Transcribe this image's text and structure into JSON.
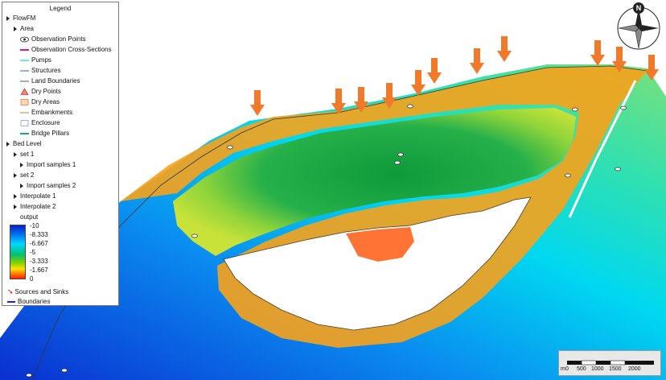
{
  "legend": {
    "title": "Legend",
    "items": [
      {
        "label": "FlowFM",
        "kind": "tri",
        "indent": 0
      },
      {
        "label": "Area",
        "kind": "tri",
        "indent": 1
      },
      {
        "label": "Observation Points",
        "kind": "eye-icon",
        "indent": 2
      },
      {
        "label": "Observation Cross-Sections",
        "kind": "pink-line-icon",
        "indent": 2
      },
      {
        "label": "Pumps",
        "kind": "cyan-line-icon",
        "indent": 2
      },
      {
        "label": "Structures",
        "kind": "blue-line-icon",
        "indent": 2
      },
      {
        "label": "Land Boundaries",
        "kind": "gray-line-icon",
        "indent": 2
      },
      {
        "label": "Dry Points",
        "kind": "red-triangle-icon",
        "indent": 2
      },
      {
        "label": "Dry Areas",
        "kind": "orange-square-icon",
        "indent": 2
      },
      {
        "label": "Embankments",
        "kind": "tan-line-icon",
        "indent": 2
      },
      {
        "label": "Enclosure",
        "kind": "blue-square-icon",
        "indent": 2
      },
      {
        "label": "Bridge Pillars",
        "kind": "teal-line-icon",
        "indent": 2
      },
      {
        "label": "Bed Level",
        "kind": "tri",
        "indent": 0
      },
      {
        "label": "set 1",
        "kind": "tri",
        "indent": 1
      },
      {
        "label": "Import samples 1",
        "kind": "tri",
        "indent": 2
      },
      {
        "label": "set 2",
        "kind": "tri",
        "indent": 1
      },
      {
        "label": "Import samples 2",
        "kind": "tri",
        "indent": 2
      },
      {
        "label": "Interpolate 1",
        "kind": "tri",
        "indent": 1
      },
      {
        "label": "Interpolate 2",
        "kind": "tri",
        "indent": 1
      },
      {
        "label": "output",
        "kind": "none",
        "indent": 2
      }
    ],
    "colorbar_ticks": [
      "-10",
      "-8.333",
      "-6.667",
      "-5",
      "-3.333",
      "-1.667",
      "0"
    ],
    "sources_label": "Sources and Sinks",
    "boundaries_label": "Boundaries"
  },
  "compass": {
    "north_label": "N"
  },
  "scalebar": {
    "unit": "m",
    "labels": [
      "0",
      "500",
      "1000",
      "1500",
      "2000"
    ]
  },
  "colors": {
    "deep": "#0a2fd0",
    "mid": "#00c8ff",
    "shallow": "#1aa33a",
    "land_edge": "#ff6a00",
    "source_arrow": "#f07a2a"
  },
  "icons": {
    "observation_point": "eye-icon",
    "source_arrow": "down-arrow-icon",
    "compass": "north-compass-icon"
  }
}
